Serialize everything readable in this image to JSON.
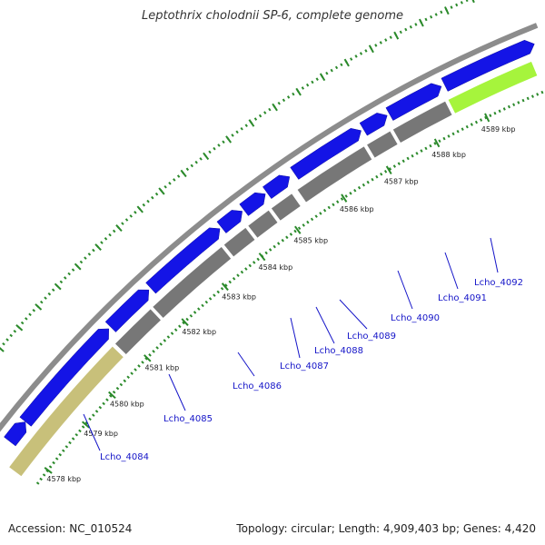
{
  "title": "Leptothrix cholodnii SP-6, complete genome",
  "footer": {
    "accession": "Accession: NC_010524",
    "summary": "Topology: circular; Length: 4,909,403 bp; Genes: 4,420"
  },
  "colors": {
    "backbone": "#8c8c8c",
    "cds": "#1414e6",
    "gene": "#777777",
    "rrna_yellow": "#c8c07a",
    "rrna_green": "#a6f43c",
    "ticks": "#2b8a2b",
    "label_text": "#1414c8"
  },
  "kbp_ticks": [
    {
      "kbp": 4578,
      "label": "4578 kbp"
    },
    {
      "kbp": 4579,
      "label": "4579 kbp"
    },
    {
      "kbp": 4580,
      "label": "4580 kbp"
    },
    {
      "kbp": 4581,
      "label": "4581 kbp"
    },
    {
      "kbp": 4582,
      "label": "4582 kbp"
    },
    {
      "kbp": 4583,
      "label": "4583 kbp"
    },
    {
      "kbp": 4584,
      "label": "4584 kbp"
    },
    {
      "kbp": 4585,
      "label": "4585 kbp"
    },
    {
      "kbp": 4586,
      "label": "4586 kbp"
    },
    {
      "kbp": 4587,
      "label": "4587 kbp"
    },
    {
      "kbp": 4588,
      "label": "4588 kbp"
    },
    {
      "kbp": 4589,
      "label": "4589 kbp"
    }
  ],
  "genes": [
    {
      "name": "Lcho_4084"
    },
    {
      "name": "Lcho_4085"
    },
    {
      "name": "Lcho_4086"
    },
    {
      "name": "Lcho_4087"
    },
    {
      "name": "Lcho_4088"
    },
    {
      "name": "Lcho_4089"
    },
    {
      "name": "Lcho_4090"
    },
    {
      "name": "Lcho_4091"
    },
    {
      "name": "Lcho_4092"
    }
  ]
}
